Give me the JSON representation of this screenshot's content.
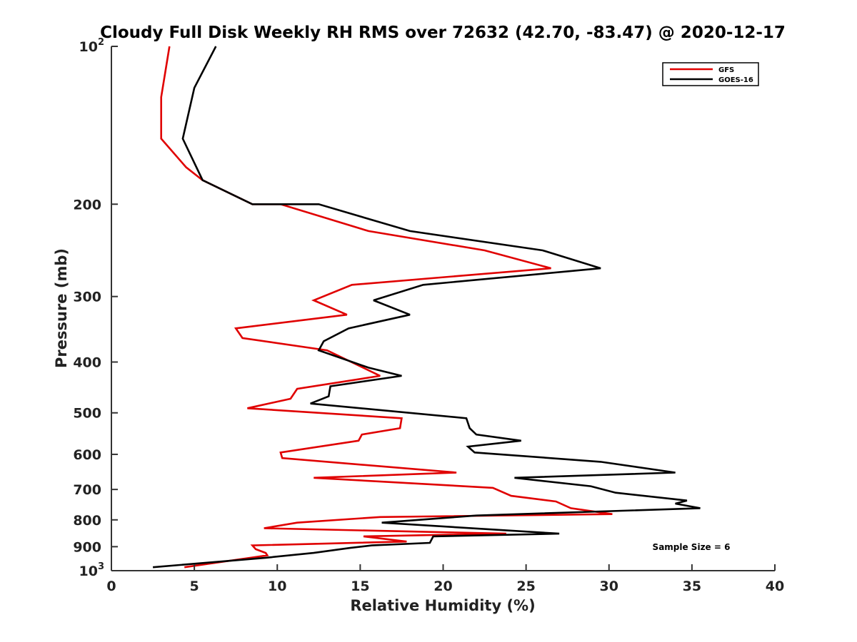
{
  "chart_data": {
    "type": "line",
    "title": "Cloudy Full Disk Weekly RH RMS over 72632 (42.70, -83.47) @ 2020-12-17",
    "xlabel": "Relative Humidity (%)",
    "ylabel": "Pressure (mb)",
    "xlim": [
      0,
      40
    ],
    "ylim": [
      100,
      1000
    ],
    "y_scale": "log",
    "y_reversed": true,
    "x_ticks": [
      "0",
      "5",
      "10",
      "15",
      "20",
      "25",
      "30",
      "35",
      "40"
    ],
    "y_ticks": [
      {
        "value": 100,
        "base": "10",
        "exp": "2"
      },
      {
        "value": 200,
        "label": "200"
      },
      {
        "value": 300,
        "label": "300"
      },
      {
        "value": 400,
        "label": "400"
      },
      {
        "value": 500,
        "label": "500"
      },
      {
        "value": 600,
        "label": "600"
      },
      {
        "value": 700,
        "label": "700"
      },
      {
        "value": 800,
        "label": "800"
      },
      {
        "value": 900,
        "label": "900"
      },
      {
        "value": 1000,
        "base": "10",
        "exp": "3"
      }
    ],
    "grid": false,
    "legend_position": "top-right",
    "annotation": "Sample Size = 6",
    "series": [
      {
        "name": "GFS",
        "color": "#e00000",
        "points": [
          [
            3.5,
            100
          ],
          [
            3.0,
            125
          ],
          [
            3.0,
            150
          ],
          [
            4.5,
            170
          ],
          [
            5.5,
            180
          ],
          [
            8.5,
            200
          ],
          [
            10.2,
            200
          ],
          [
            15.5,
            225
          ],
          [
            22.5,
            245
          ],
          [
            26.5,
            265
          ],
          [
            14.5,
            285
          ],
          [
            12.2,
            305
          ],
          [
            14.2,
            325
          ],
          [
            7.5,
            345
          ],
          [
            7.9,
            360
          ],
          [
            13.0,
            380
          ],
          [
            16.2,
            425
          ],
          [
            11.2,
            450
          ],
          [
            10.8,
            470
          ],
          [
            8.2,
            490
          ],
          [
            17.5,
            512
          ],
          [
            17.4,
            535
          ],
          [
            15.1,
            550
          ],
          [
            14.9,
            565
          ],
          [
            10.2,
            595
          ],
          [
            10.3,
            610
          ],
          [
            20.8,
            650
          ],
          [
            12.2,
            665
          ],
          [
            23.0,
            695
          ],
          [
            24.1,
            720
          ],
          [
            26.8,
            738
          ],
          [
            27.7,
            760
          ],
          [
            30.2,
            780
          ],
          [
            16.2,
            790
          ],
          [
            11.2,
            810
          ],
          [
            9.2,
            830
          ],
          [
            23.8,
            850
          ],
          [
            15.2,
            860
          ],
          [
            17.8,
            880
          ],
          [
            8.5,
            895
          ],
          [
            8.7,
            910
          ],
          [
            9.3,
            925
          ],
          [
            9.4,
            935
          ],
          [
            4.4,
            985
          ]
        ]
      },
      {
        "name": "GOES-16",
        "color": "#000000",
        "points": [
          [
            6.3,
            100
          ],
          [
            5.0,
            120
          ],
          [
            4.3,
            150
          ],
          [
            5.5,
            180
          ],
          [
            8.5,
            200
          ],
          [
            12.5,
            200
          ],
          [
            18.0,
            225
          ],
          [
            26.0,
            245
          ],
          [
            29.5,
            265
          ],
          [
            18.8,
            285
          ],
          [
            15.8,
            305
          ],
          [
            18.0,
            325
          ],
          [
            14.3,
            345
          ],
          [
            12.8,
            365
          ],
          [
            12.5,
            380
          ],
          [
            15.5,
            410
          ],
          [
            17.5,
            425
          ],
          [
            13.2,
            445
          ],
          [
            13.1,
            465
          ],
          [
            12.0,
            480
          ],
          [
            21.4,
            512
          ],
          [
            21.6,
            535
          ],
          [
            22.0,
            550
          ],
          [
            24.7,
            565
          ],
          [
            21.5,
            580
          ],
          [
            21.9,
            595
          ],
          [
            29.5,
            620
          ],
          [
            34.0,
            650
          ],
          [
            24.3,
            665
          ],
          [
            28.9,
            690
          ],
          [
            30.4,
            710
          ],
          [
            34.7,
            735
          ],
          [
            34.0,
            745
          ],
          [
            35.5,
            760
          ],
          [
            22.0,
            785
          ],
          [
            16.3,
            810
          ],
          [
            27.0,
            850
          ],
          [
            19.4,
            860
          ],
          [
            19.2,
            885
          ],
          [
            15.7,
            895
          ],
          [
            14.4,
            905
          ],
          [
            12.2,
            925
          ],
          [
            9.3,
            945
          ],
          [
            2.5,
            985
          ]
        ]
      }
    ]
  }
}
